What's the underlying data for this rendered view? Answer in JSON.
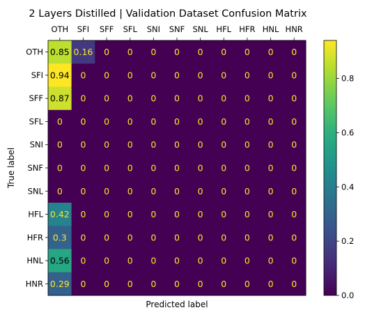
{
  "chart_data": {
    "type": "heatmap",
    "title": "2 Layers Distilled | Validation Dataset Confusion Matrix",
    "xlabel": "Predicted label",
    "ylabel": "True label",
    "x_categories": [
      "OTH",
      "SFI",
      "SFF",
      "SFL",
      "SNI",
      "SNF",
      "SNL",
      "HFL",
      "HFR",
      "HNL",
      "HNR"
    ],
    "y_categories": [
      "OTH",
      "SFI",
      "SFF",
      "SFL",
      "SNI",
      "SNF",
      "SNL",
      "HFL",
      "HFR",
      "HNL",
      "HNR"
    ],
    "values": [
      [
        0.85,
        0.16,
        0,
        0,
        0,
        0,
        0,
        0,
        0,
        0,
        0
      ],
      [
        0.94,
        0,
        0,
        0,
        0,
        0,
        0,
        0,
        0,
        0,
        0
      ],
      [
        0.87,
        0,
        0,
        0,
        0,
        0,
        0,
        0,
        0,
        0,
        0
      ],
      [
        0,
        0,
        0,
        0,
        0,
        0,
        0,
        0,
        0,
        0,
        0
      ],
      [
        0,
        0,
        0,
        0,
        0,
        0,
        0,
        0,
        0,
        0,
        0
      ],
      [
        0,
        0,
        0,
        0,
        0,
        0,
        0,
        0,
        0,
        0,
        0
      ],
      [
        0,
        0,
        0,
        0,
        0,
        0,
        0,
        0,
        0,
        0,
        0
      ],
      [
        0.42,
        0,
        0,
        0,
        0,
        0,
        0,
        0,
        0,
        0,
        0
      ],
      [
        0.3,
        0,
        0,
        0,
        0,
        0,
        0,
        0,
        0,
        0,
        0
      ],
      [
        0.56,
        0,
        0,
        0,
        0,
        0,
        0,
        0,
        0,
        0,
        0
      ],
      [
        0.29,
        0,
        0,
        0,
        0,
        0,
        0,
        0,
        0,
        0,
        0
      ]
    ],
    "value_range": [
      0,
      0.94
    ],
    "colormap": "viridis",
    "colorbar": {
      "ticks": [
        0.0,
        0.2,
        0.4,
        0.6,
        0.8
      ],
      "tick_labels": [
        "0.0",
        "0.2",
        "0.4",
        "0.6",
        "0.8"
      ]
    },
    "x_tick_position": "top",
    "grid": false
  }
}
